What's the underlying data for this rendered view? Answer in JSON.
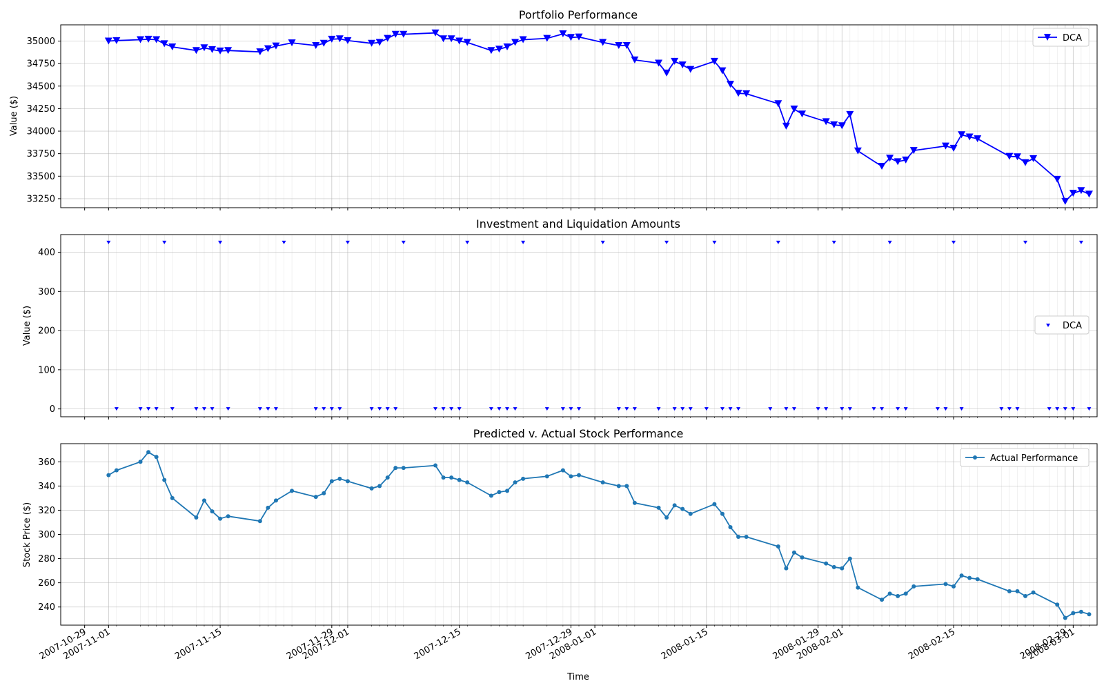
{
  "figure": {
    "xlabel": "Time"
  },
  "colors": {
    "dca": "#0000ff",
    "actual": "#1f77b4",
    "grid": "#b0b0b0",
    "axis": "#000000"
  },
  "x_ticks": [
    {
      "date": "2007-10-29",
      "label": "2007-10-29",
      "major": true
    },
    {
      "date": "2007-11-01",
      "label": "2007-11-01",
      "major": true
    },
    {
      "date": "2007-11-15",
      "label": "2007-11-15",
      "major": true
    },
    {
      "date": "2007-11-29",
      "label": "2007-11-29",
      "major": true
    },
    {
      "date": "2007-12-01",
      "label": "2007-12-01",
      "major": true
    },
    {
      "date": "2007-12-15",
      "label": "2007-12-15",
      "major": true
    },
    {
      "date": "2007-12-29",
      "label": "2007-12-29",
      "major": true
    },
    {
      "date": "2008-01-01",
      "label": "2008-01-01",
      "major": true
    },
    {
      "date": "2008-01-15",
      "label": "2008-01-15",
      "major": true
    },
    {
      "date": "2008-01-29",
      "label": "2008-01-29",
      "major": true
    },
    {
      "date": "2008-02-01",
      "label": "2008-02-01",
      "major": true
    },
    {
      "date": "2008-02-15",
      "label": "2008-02-15",
      "major": true
    },
    {
      "date": "2008-02-29",
      "label": "2008-02-29",
      "major": true
    },
    {
      "date": "2008-03-01",
      "label": "2008-03-01",
      "major": true
    }
  ],
  "chart_data": [
    {
      "type": "line",
      "title": "Portfolio Performance",
      "ylabel": "Value ($)",
      "xlabel": "",
      "xlim": [
        "2007-10-26",
        "2008-03-04"
      ],
      "ylim": [
        33150,
        35180
      ],
      "yticks": [
        33250,
        33500,
        33750,
        34000,
        34250,
        34500,
        34750,
        35000
      ],
      "grid": true,
      "legend": "top-right",
      "series": [
        {
          "name": "DCA",
          "marker": "triangle-down",
          "x": [
            "2007-11-01",
            "2007-11-02",
            "2007-11-05",
            "2007-11-06",
            "2007-11-07",
            "2007-11-08",
            "2007-11-09",
            "2007-11-12",
            "2007-11-13",
            "2007-11-14",
            "2007-11-15",
            "2007-11-16",
            "2007-11-20",
            "2007-11-21",
            "2007-11-22",
            "2007-11-24",
            "2007-11-27",
            "2007-11-28",
            "2007-11-29",
            "2007-11-30",
            "2007-12-01",
            "2007-12-04",
            "2007-12-05",
            "2007-12-06",
            "2007-12-07",
            "2007-12-08",
            "2007-12-12",
            "2007-12-13",
            "2007-12-14",
            "2007-12-15",
            "2007-12-16",
            "2007-12-19",
            "2007-12-20",
            "2007-12-21",
            "2007-12-22",
            "2007-12-23",
            "2007-12-26",
            "2007-12-28",
            "2007-12-29",
            "2007-12-30",
            "2008-01-02",
            "2008-01-04",
            "2008-01-05",
            "2008-01-06",
            "2008-01-09",
            "2008-01-10",
            "2008-01-11",
            "2008-01-12",
            "2008-01-13",
            "2008-01-16",
            "2008-01-17",
            "2008-01-18",
            "2008-01-19",
            "2008-01-20",
            "2008-01-24",
            "2008-01-25",
            "2008-01-26",
            "2008-01-27",
            "2008-01-30",
            "2008-01-31",
            "2008-02-01",
            "2008-02-02",
            "2008-02-03",
            "2008-02-06",
            "2008-02-07",
            "2008-02-08",
            "2008-02-09",
            "2008-02-10",
            "2008-02-14",
            "2008-02-15",
            "2008-02-16",
            "2008-02-17",
            "2008-02-18",
            "2008-02-22",
            "2008-02-23",
            "2008-02-24",
            "2008-02-25",
            "2008-02-28",
            "2008-02-29",
            "2008-03-01",
            "2008-03-02",
            "2008-03-03"
          ],
          "values": [
            35000,
            35005,
            35015,
            35020,
            35015,
            34970,
            34935,
            34895,
            34925,
            34905,
            34890,
            34895,
            34880,
            34915,
            34945,
            34980,
            34950,
            34975,
            35020,
            35025,
            35005,
            34975,
            34985,
            35030,
            35075,
            35075,
            35090,
            35025,
            35025,
            35000,
            34985,
            34895,
            34910,
            34935,
            34985,
            35015,
            35030,
            35080,
            35040,
            35045,
            34985,
            34950,
            34950,
            34790,
            34755,
            34645,
            34775,
            34735,
            34685,
            34775,
            34670,
            34520,
            34420,
            34415,
            34305,
            34055,
            34245,
            34190,
            34105,
            34070,
            34060,
            34185,
            33780,
            33610,
            33700,
            33660,
            33680,
            33785,
            33835,
            33810,
            33960,
            33935,
            33915,
            33720,
            33715,
            33650,
            33695,
            33465,
            33220,
            33310,
            33340,
            33300
          ]
        }
      ]
    },
    {
      "type": "scatter",
      "title": "Investment and Liquidation Amounts",
      "ylabel": "Value ($)",
      "xlabel": "",
      "xlim": [
        "2007-10-26",
        "2008-03-04"
      ],
      "ylim": [
        -20,
        445
      ],
      "yticks": [
        0,
        100,
        200,
        300,
        400
      ],
      "grid": true,
      "legend": "center-right",
      "series": [
        {
          "name": "DCA",
          "marker": "triangle-down",
          "x": [
            "2007-11-01",
            "2007-11-02",
            "2007-11-05",
            "2007-11-06",
            "2007-11-07",
            "2007-11-08",
            "2007-11-09",
            "2007-11-12",
            "2007-11-13",
            "2007-11-14",
            "2007-11-15",
            "2007-11-16",
            "2007-11-20",
            "2007-11-21",
            "2007-11-22",
            "2007-11-23",
            "2007-11-27",
            "2007-11-28",
            "2007-11-29",
            "2007-11-30",
            "2007-12-01",
            "2007-12-04",
            "2007-12-05",
            "2007-12-06",
            "2007-12-07",
            "2007-12-08",
            "2007-12-12",
            "2007-12-13",
            "2007-12-14",
            "2007-12-15",
            "2007-12-16",
            "2007-12-19",
            "2007-12-20",
            "2007-12-21",
            "2007-12-22",
            "2007-12-23",
            "2007-12-26",
            "2007-12-28",
            "2007-12-29",
            "2007-12-30",
            "2008-01-02",
            "2008-01-04",
            "2008-01-05",
            "2008-01-06",
            "2008-01-09",
            "2008-01-10",
            "2008-01-11",
            "2008-01-12",
            "2008-01-13",
            "2008-01-15",
            "2008-01-16",
            "2008-01-17",
            "2008-01-18",
            "2008-01-19",
            "2008-01-23",
            "2008-01-24",
            "2008-01-25",
            "2008-01-26",
            "2008-01-29",
            "2008-01-30",
            "2008-01-31",
            "2008-02-01",
            "2008-02-02",
            "2008-02-05",
            "2008-02-06",
            "2008-02-07",
            "2008-02-08",
            "2008-02-09",
            "2008-02-13",
            "2008-02-14",
            "2008-02-15",
            "2008-02-16",
            "2008-02-21",
            "2008-02-22",
            "2008-02-23",
            "2008-02-24",
            "2008-02-27",
            "2008-02-28",
            "2008-02-29",
            "2008-03-01",
            "2008-03-02",
            "2008-03-03"
          ],
          "values": [
            425,
            0,
            0,
            0,
            0,
            425,
            0,
            0,
            0,
            0,
            425,
            0,
            0,
            0,
            0,
            425,
            0,
            0,
            0,
            0,
            425,
            0,
            0,
            0,
            0,
            425,
            0,
            0,
            0,
            0,
            425,
            0,
            0,
            0,
            0,
            425,
            0,
            0,
            0,
            0,
            425,
            0,
            0,
            0,
            0,
            425,
            0,
            0,
            0,
            0,
            425,
            0,
            0,
            0,
            0,
            425,
            0,
            0,
            0,
            0,
            425,
            0,
            0,
            0,
            0,
            425,
            0,
            0,
            0,
            0,
            425,
            0,
            0,
            0,
            0,
            425,
            0,
            0,
            0,
            0,
            425,
            0
          ]
        }
      ]
    },
    {
      "type": "line",
      "title": "Predicted v. Actual Stock Performance",
      "ylabel": "Stock Price ($)",
      "xlabel": "Time",
      "xlim": [
        "2007-10-26",
        "2008-03-04"
      ],
      "ylim": [
        225,
        375
      ],
      "yticks": [
        240,
        260,
        280,
        300,
        320,
        340,
        360
      ],
      "grid": true,
      "legend": "top-right",
      "series": [
        {
          "name": "Actual Performance",
          "marker": "circle",
          "x": [
            "2007-11-01",
            "2007-11-02",
            "2007-11-05",
            "2007-11-06",
            "2007-11-07",
            "2007-11-08",
            "2007-11-09",
            "2007-11-12",
            "2007-11-13",
            "2007-11-14",
            "2007-11-15",
            "2007-11-16",
            "2007-11-20",
            "2007-11-21",
            "2007-11-22",
            "2007-11-24",
            "2007-11-27",
            "2007-11-28",
            "2007-11-29",
            "2007-11-30",
            "2007-12-01",
            "2007-12-04",
            "2007-12-05",
            "2007-12-06",
            "2007-12-07",
            "2007-12-08",
            "2007-12-12",
            "2007-12-13",
            "2007-12-14",
            "2007-12-15",
            "2007-12-16",
            "2007-12-19",
            "2007-12-20",
            "2007-12-21",
            "2007-12-22",
            "2007-12-23",
            "2007-12-26",
            "2007-12-28",
            "2007-12-29",
            "2007-12-30",
            "2008-01-02",
            "2008-01-04",
            "2008-01-05",
            "2008-01-06",
            "2008-01-09",
            "2008-01-10",
            "2008-01-11",
            "2008-01-12",
            "2008-01-13",
            "2008-01-16",
            "2008-01-17",
            "2008-01-18",
            "2008-01-19",
            "2008-01-20",
            "2008-01-24",
            "2008-01-25",
            "2008-01-26",
            "2008-01-27",
            "2008-01-30",
            "2008-01-31",
            "2008-02-01",
            "2008-02-02",
            "2008-02-03",
            "2008-02-06",
            "2008-02-07",
            "2008-02-08",
            "2008-02-09",
            "2008-02-10",
            "2008-02-14",
            "2008-02-15",
            "2008-02-16",
            "2008-02-17",
            "2008-02-18",
            "2008-02-22",
            "2008-02-23",
            "2008-02-24",
            "2008-02-25",
            "2008-02-28",
            "2008-02-29",
            "2008-03-01",
            "2008-03-02",
            "2008-03-03"
          ],
          "values": [
            349,
            353,
            360,
            368,
            364,
            345,
            330,
            314,
            328,
            319,
            313,
            315,
            311,
            322,
            328,
            336,
            331,
            334,
            344,
            346,
            344,
            338,
            340,
            347,
            355,
            355,
            357,
            347,
            347,
            345,
            343,
            332,
            335,
            336,
            343,
            346,
            348,
            353,
            348,
            349,
            343,
            340,
            340,
            326,
            322,
            314,
            324,
            321,
            317,
            325,
            317,
            306,
            298,
            298,
            290,
            272,
            285,
            281,
            276,
            273,
            272,
            280,
            256,
            246,
            251,
            249,
            251,
            257,
            259,
            257,
            266,
            264,
            263,
            253,
            253,
            249,
            252,
            242,
            231,
            235,
            236,
            234
          ]
        }
      ]
    }
  ]
}
